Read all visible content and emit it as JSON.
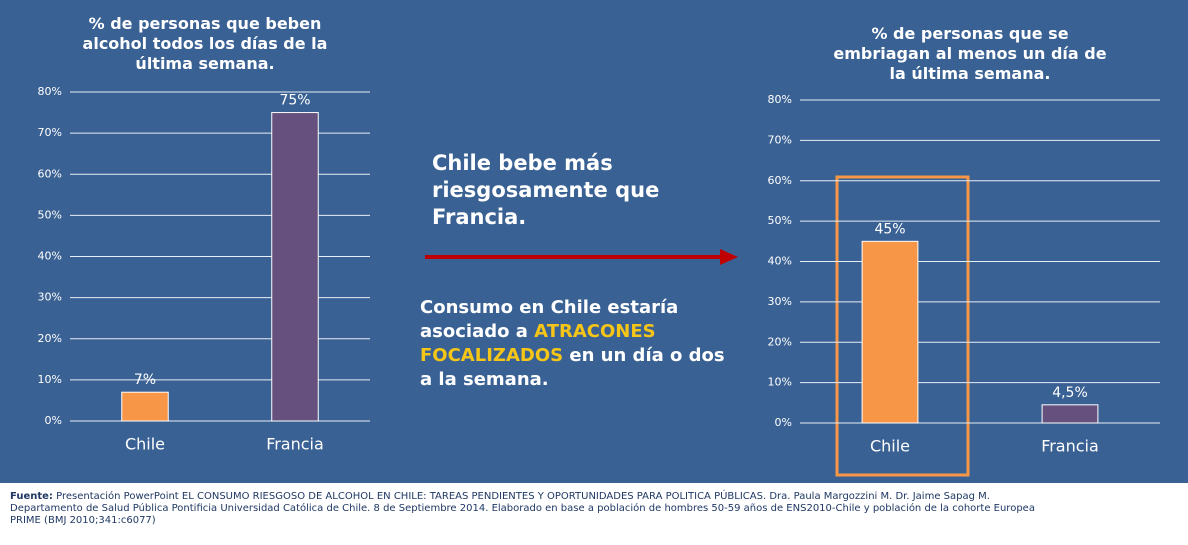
{
  "chart_data": [
    {
      "type": "bar",
      "title": "% de personas que beben alcohol todos los días de la última semana.",
      "categories": [
        "Chile",
        "Francia"
      ],
      "values": [
        7,
        75
      ],
      "value_labels": [
        "7%",
        "75%"
      ],
      "colors": [
        "#f79646",
        "#66507e"
      ],
      "ylim": [
        0,
        80
      ],
      "yticks": [
        {
          "value": 0,
          "label": "0%"
        },
        {
          "value": 10,
          "label": "10%"
        },
        {
          "value": 20,
          "label": "20%"
        },
        {
          "value": 30,
          "label": "30%"
        },
        {
          "value": 40,
          "label": "40%"
        },
        {
          "value": 50,
          "label": "50%"
        },
        {
          "value": 60,
          "label": "60%"
        },
        {
          "value": 70,
          "label": "70%"
        },
        {
          "value": 80,
          "label": "80%"
        }
      ],
      "grid": true
    },
    {
      "type": "bar",
      "title": "% de personas que se embriagan al menos un día de la última semana.",
      "categories": [
        "Chile",
        "Francia"
      ],
      "values": [
        45,
        4.5
      ],
      "value_labels": [
        "45%",
        "4,5%"
      ],
      "colors": [
        "#f79646",
        "#66507e"
      ],
      "ylim": [
        0,
        80
      ],
      "yticks": [
        {
          "value": 0,
          "label": "0%"
        },
        {
          "value": 10,
          "label": "10%"
        },
        {
          "value": 20,
          "label": "20%"
        },
        {
          "value": 30,
          "label": "30%"
        },
        {
          "value": 40,
          "label": "40%"
        },
        {
          "value": 50,
          "label": "50%"
        },
        {
          "value": 60,
          "label": "60%"
        },
        {
          "value": 70,
          "label": "70%"
        },
        {
          "value": 80,
          "label": "80%"
        }
      ],
      "grid": true
    }
  ],
  "message": {
    "headline": "Chile bebe más riesgosamente que Francia.",
    "body": [
      "Consumo en Chile estaría asociado a ",
      "ATRACONES FOCALIZADOS",
      " en un día o dos a la semana."
    ]
  },
  "source": {
    "label": "Fuente:",
    "text": "Presentación PowerPoint EL CONSUMO RIESGOSO DE ALCOHOL EN CHILE: TAREAS PENDIENTES Y OPORTUNIDADES PARA POLITICA PÚBLICAS. Dra. Paula Margozzini M. Dr. Jaime Sapag M. Departamento de Salud Pública Pontificia Universidad Católica de Chile.  8 de Septiembre 2014. Elaborado en base a población de hombres 50-59 años de ENS2010-Chile y población de la cohorte Europea PRIME (BMJ 2010;341:c6077)"
  }
}
